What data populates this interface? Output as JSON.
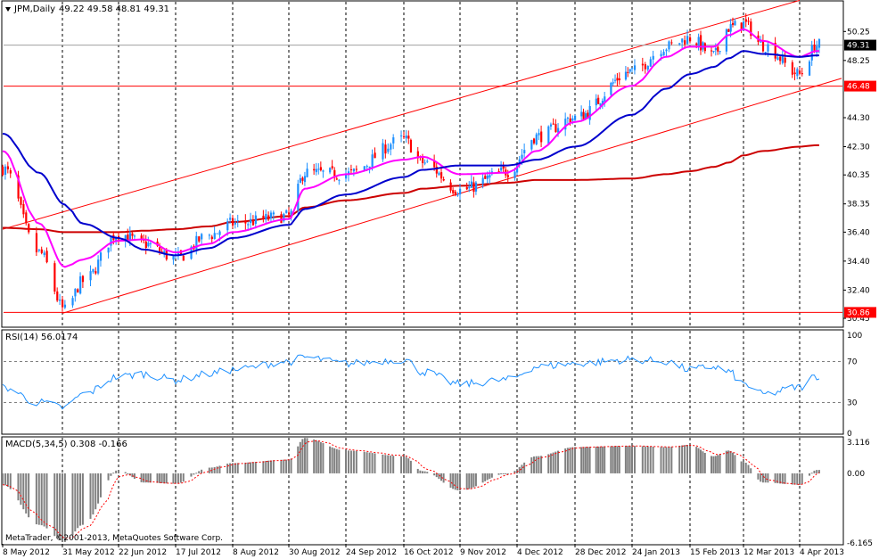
{
  "chart_data": {
    "type": "candlestick",
    "header": {
      "symbol": "JPM,Daily",
      "ohlc": "49.22 49.58 48.81 49.31"
    },
    "price_axis": {
      "ylim": [
        29.9,
        52.3
      ],
      "ticks": [
        "50.25",
        "48.25",
        "44.30",
        "42.30",
        "40.35",
        "38.35",
        "36.40",
        "34.40",
        "32.40",
        "30.45"
      ],
      "current_price": "49.31",
      "hlines": [
        {
          "value": "46.48",
          "color": "#ff0000"
        },
        {
          "value": "30.86",
          "color": "#ff0000"
        }
      ]
    },
    "x_axis": {
      "labels": [
        "8 May 2012",
        "31 May 2012",
        "22 Jun 2012",
        "17 Jul 2012",
        "8 Aug 2012",
        "30 Aug 2012",
        "24 Sep 2012",
        "16 Oct 2012",
        "9 Nov 2012",
        "4 Dec 2012",
        "28 Dec 2012",
        "24 Jan 2013",
        "15 Feb 2013",
        "12 Mar 2013",
        "4 Apr 2013"
      ]
    },
    "bull_color": "#1e90ff",
    "bear_color": "#ff0000",
    "series": [
      {
        "name": "ma-short",
        "color": "#ff00ff"
      },
      {
        "name": "ma-medium",
        "color": "#0000cd"
      },
      {
        "name": "ma-long",
        "color": "#cc0000"
      }
    ],
    "candle_anchors": {
      "x": [
        "8 May 2012",
        "22 May 2012",
        "1 Jun 2012",
        "8 Jun 2012",
        "22 Jun 2012",
        "3 Jul 2012",
        "17 Jul 2012",
        "30 Jul 2012",
        "8 Aug 2012",
        "30 Aug 2012",
        "6 Sep 2012",
        "24 Sep 2012",
        "16 Oct 2012",
        "24 Oct 2012",
        "9 Nov 2012",
        "30 Nov 2012",
        "12 Dec 2012",
        "28 Dec 2012",
        "24 Jan 2013",
        "6 Feb 2013",
        "15 Feb 2013",
        "26 Feb 2013",
        "5 Mar 2013",
        "12 Mar 2013",
        "20 Mar 2013",
        "4 Apr 2013",
        "11 Apr 2013"
      ],
      "close": [
        40.8,
        35.0,
        31.0,
        33.0,
        36.3,
        35.6,
        34.6,
        36.2,
        37.0,
        37.5,
        40.5,
        40.4,
        42.8,
        41.2,
        39.3,
        40.6,
        43.0,
        44.3,
        47.5,
        49.2,
        49.8,
        48.6,
        50.5,
        50.8,
        49.3,
        47.3,
        49.31
      ]
    },
    "ma_short_anchors": [
      42.0,
      37.0,
      34.0,
      34.5,
      35.8,
      35.9,
      35.0,
      35.6,
      36.4,
      37.3,
      39.4,
      40.4,
      41.4,
      41.6,
      40.4,
      40.5,
      42.0,
      44.0,
      46.5,
      48.5,
      49.2,
      49.2,
      50.0,
      50.4,
      49.6,
      48.5,
      48.9
    ],
    "ma_medium_anchors": [
      43.2,
      40.5,
      38.3,
      37.0,
      36.0,
      35.2,
      34.8,
      35.3,
      36.0,
      36.9,
      38.0,
      39.0,
      40.2,
      40.7,
      41.0,
      41.0,
      41.4,
      42.3,
      44.5,
      46.3,
      47.3,
      47.8,
      48.4,
      48.9,
      48.7,
      48.5,
      48.6
    ],
    "ma_long_anchors": [
      36.7,
      36.6,
      36.4,
      36.4,
      36.4,
      36.5,
      36.6,
      36.8,
      37.1,
      37.5,
      38.1,
      38.6,
      39.1,
      39.4,
      39.6,
      39.8,
      40.0,
      40.0,
      40.1,
      40.4,
      40.6,
      40.9,
      41.2,
      41.7,
      42.0,
      42.3,
      42.4
    ],
    "channel": {
      "upper": [
        {
          "x": "8 May 2012",
          "y": 36.6
        },
        {
          "x": "4 Apr 2013",
          "y": 52.4
        }
      ],
      "lower": [
        {
          "x": "31 May 2012",
          "y": 30.8
        },
        {
          "x": "11 Apr 2013",
          "y": 46.5
        }
      ]
    },
    "rsi": {
      "label": "RSI(14) 56.0174",
      "ylim": [
        0,
        100
      ],
      "ticks": [
        "100",
        "70",
        "30",
        "0"
      ],
      "levels": [
        70,
        30
      ],
      "color": "#1e90ff",
      "anchors": [
        45,
        30,
        25,
        38,
        55,
        58,
        52,
        58,
        62,
        70,
        74,
        68,
        72,
        60,
        48,
        52,
        65,
        68,
        72,
        70,
        62,
        65,
        60,
        48,
        38,
        45,
        56
      ]
    },
    "macd": {
      "label": "MACD(5,34,5) 0.308 -0.166",
      "ylim": [
        -6.165,
        3.116
      ],
      "ticks": [
        "3.116",
        "0.00",
        "-6.165"
      ],
      "hist_color": "#808080",
      "signal_color": "#ff0000",
      "anchors": [
        -1.0,
        -4.5,
        -6.0,
        -4.5,
        0.3,
        -0.8,
        -0.9,
        0.5,
        0.9,
        1.2,
        3.1,
        2.0,
        1.5,
        0.2,
        -1.5,
        0.0,
        1.5,
        2.3,
        2.4,
        2.3,
        2.5,
        1.5,
        2.0,
        1.0,
        -0.8,
        -1.0,
        0.3
      ]
    },
    "copyright": "MetaTrader, ©2001-2013, MetaQuotes Software Corp."
  }
}
